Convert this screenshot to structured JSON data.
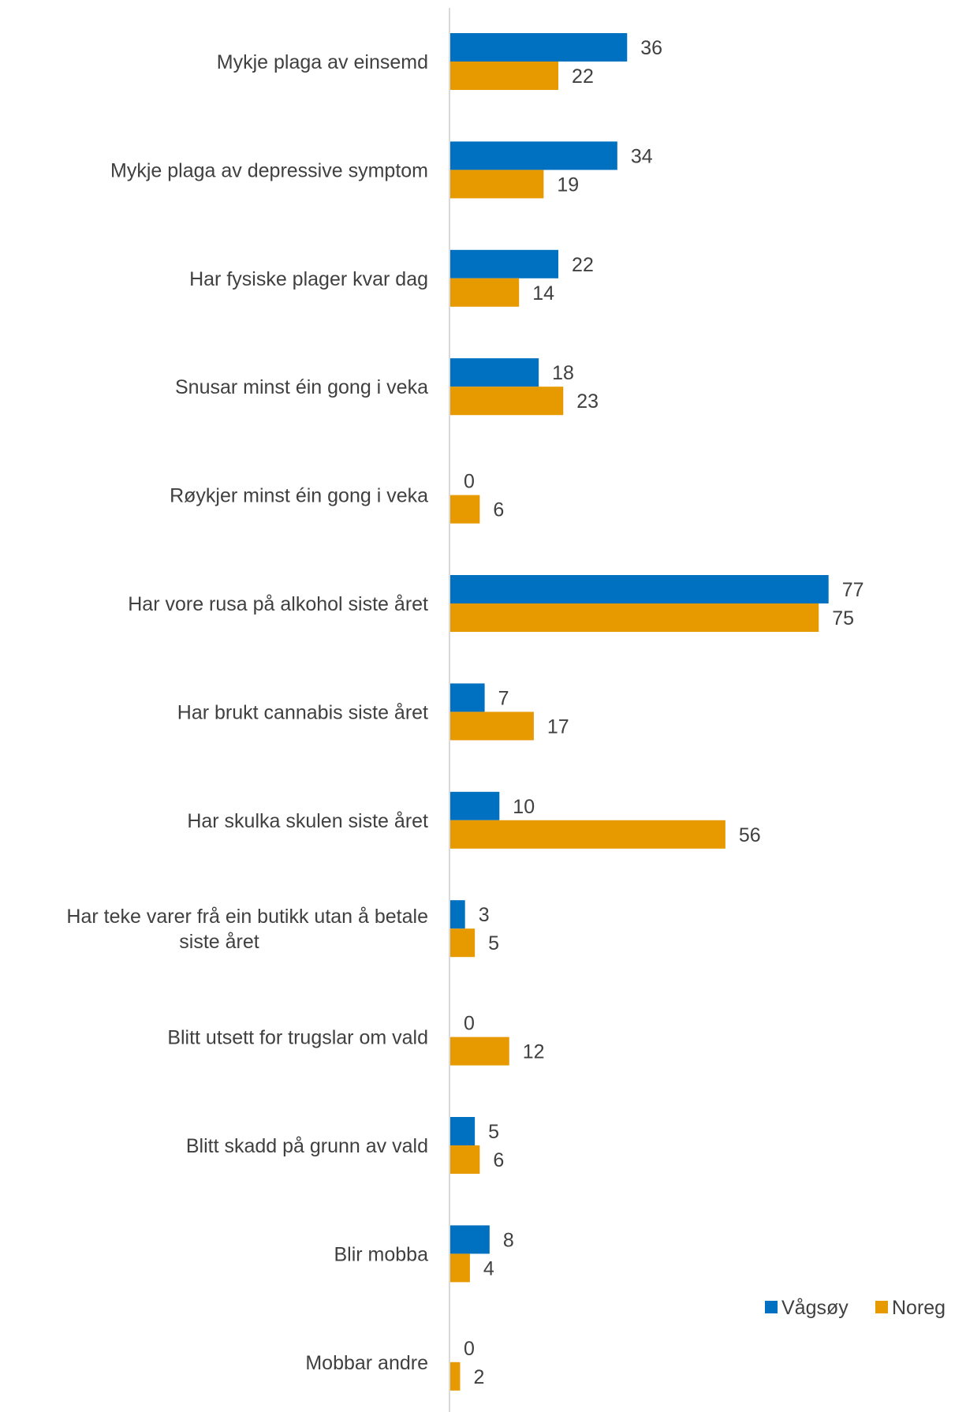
{
  "chart_data": {
    "type": "bar",
    "orientation": "horizontal",
    "categories": [
      "Mykje plaga av einsemd",
      "Mykje plaga av depressive symptom",
      "Har fysiske plager kvar dag",
      "Snusar minst éin gong i veka",
      "Røykjer minst éin gong i veka",
      "Har vore rusa på alkohol siste året",
      "Har brukt cannabis siste året",
      "Har skulka skulen siste året",
      "Har teke varer frå ein butikk utan å betale siste året",
      "Blitt utsett for trugslar om vald",
      "Blitt skadd på grunn av vald",
      "Blir mobba",
      "Mobbar andre"
    ],
    "category_lines": [
      [
        "Mykje plaga av einsemd"
      ],
      [
        "Mykje plaga av depressive symptom"
      ],
      [
        "Har fysiske plager kvar dag"
      ],
      [
        "Snusar minst éin gong i veka"
      ],
      [
        "Røykjer minst éin gong i veka"
      ],
      [
        "Har vore rusa på alkohol siste året"
      ],
      [
        "Har brukt cannabis siste året"
      ],
      [
        "Har skulka skulen siste året"
      ],
      [
        "Har teke varer frå ein butikk utan å betale",
        "siste året"
      ],
      [
        "Blitt utsett for trugslar om vald"
      ],
      [
        "Blitt skadd på grunn av vald"
      ],
      [
        "Blir mobba"
      ],
      [
        "Mobbar andre"
      ]
    ],
    "series": [
      {
        "name": "Vågsøy",
        "color": "#0070C0",
        "values": [
          36,
          34,
          22,
          18,
          0,
          77,
          7,
          10,
          3,
          0,
          5,
          8,
          0
        ]
      },
      {
        "name": "Noreg",
        "color": "#E69A00",
        "values": [
          22,
          19,
          14,
          23,
          6,
          75,
          17,
          56,
          5,
          12,
          6,
          4,
          2
        ]
      }
    ],
    "xlim": [
      0,
      77
    ],
    "legend_position": "bottom-right",
    "grid": false
  }
}
